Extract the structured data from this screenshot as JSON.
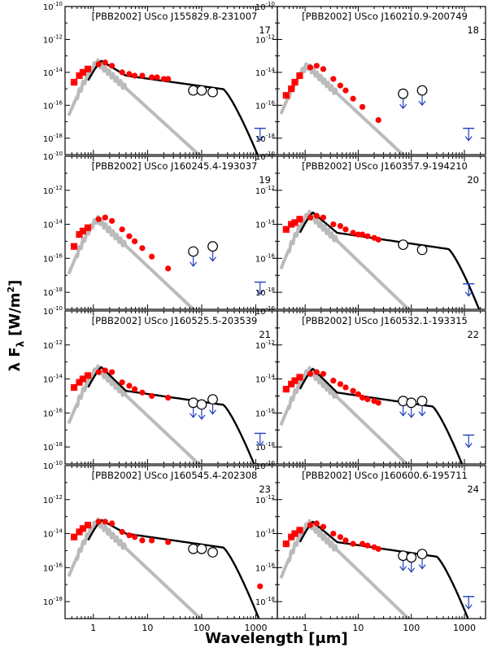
{
  "figure": {
    "ylabel_prefix": "λ F",
    "ylabel_sub": "λ",
    "ylabel_unit_open": "[W/m",
    "ylabel_unit_sup": "2",
    "ylabel_unit_close": "]",
    "xlabel_prefix": "Wavelength [",
    "xlabel_mu": "μ",
    "xlabel_suffix": "m]"
  },
  "colors": {
    "data": "#ff0000",
    "model": "#000000",
    "photosphere": "#bbbbbb",
    "upper_limit": "#1f3fbf"
  },
  "axes": {
    "x_ticks": [
      {
        "value": 1,
        "label": "1"
      },
      {
        "value": 10,
        "label": "10"
      },
      {
        "value": 100,
        "label": "100"
      },
      {
        "value": 1000,
        "label": "1000"
      }
    ],
    "y_ticks": [
      {
        "value": -10,
        "base": "10",
        "exp": "-10"
      },
      {
        "value": -12,
        "base": "10",
        "exp": "-12"
      },
      {
        "value": -14,
        "base": "10",
        "exp": "-14"
      },
      {
        "value": -16,
        "base": "10",
        "exp": "-16"
      },
      {
        "value": -18,
        "base": "10",
        "exp": "-18"
      }
    ]
  },
  "chart_data": [
    {
      "type": "scatter",
      "title": "[PBB2002] USco J155829.8-231007",
      "number": "17",
      "xlim": [
        0.3,
        2500
      ],
      "ylim": [
        -19,
        -10
      ],
      "photosphere": {
        "peak_um": 1.2,
        "peak_log": -13.4
      },
      "model": {
        "peak_um": 1.4,
        "peak_log": -13.3,
        "pl_ref_um": 50,
        "pl_ref_log": -14.7,
        "cut_um": 250
      },
      "data": {
        "x": [
          0.44,
          0.55,
          0.64,
          0.79,
          1.25,
          1.65,
          2.2,
          3.4,
          4.6,
          5.8,
          8,
          12,
          15,
          20,
          24
        ],
        "y": [
          -14.6,
          -14.2,
          -14.0,
          -13.8,
          -13.5,
          -13.4,
          -13.6,
          -14.0,
          -14.1,
          -14.2,
          -14.2,
          -14.3,
          -14.3,
          -14.4,
          -14.4
        ]
      },
      "open_circles": {
        "x": [
          70,
          100,
          160
        ],
        "y": [
          -15.1,
          -15.1,
          -15.2
        ]
      },
      "upper_limits": [
        {
          "x": 1200,
          "y": -17.4
        }
      ]
    },
    {
      "type": "scatter",
      "title": "[PBB2002] USco J160210.9-200749",
      "number": "18",
      "xlim": [
        0.3,
        2500
      ],
      "ylim": [
        -19,
        -10
      ],
      "photosphere": {
        "peak_um": 1.1,
        "peak_log": -13.6
      },
      "model": null,
      "data": {
        "x": [
          0.44,
          0.55,
          0.64,
          0.79,
          1.25,
          1.65,
          2.2,
          3.4,
          4.6,
          5.8,
          8,
          12,
          24
        ],
        "y": [
          -15.4,
          -15.0,
          -14.6,
          -14.2,
          -13.7,
          -13.6,
          -13.8,
          -14.4,
          -14.8,
          -15.1,
          -15.6,
          -16.1,
          -16.9
        ]
      },
      "open_circles": {
        "x": [
          70,
          160
        ],
        "y": [
          -15.3,
          -15.1
        ]
      },
      "upper_limits": [
        {
          "x": 70,
          "y": -15.3
        },
        {
          "x": 160,
          "y": -15.1
        },
        {
          "x": 1200,
          "y": -17.4
        }
      ]
    },
    {
      "type": "scatter",
      "title": "[PBB2002] USco J160245.4-193037",
      "number": "19",
      "xlim": [
        0.3,
        2500
      ],
      "ylim": [
        -19,
        -10
      ],
      "photosphere": {
        "peak_um": 1.2,
        "peak_log": -13.7
      },
      "model": null,
      "data": {
        "x": [
          0.44,
          0.55,
          0.64,
          0.79,
          1.25,
          1.65,
          2.2,
          3.4,
          4.6,
          5.8,
          8,
          12,
          24
        ],
        "y": [
          -15.3,
          -14.6,
          -14.4,
          -14.2,
          -13.7,
          -13.6,
          -13.8,
          -14.3,
          -14.7,
          -15.0,
          -15.4,
          -15.9,
          -16.6
        ]
      },
      "open_circles": {
        "x": [
          70,
          160
        ],
        "y": [
          -15.6,
          -15.3
        ]
      },
      "upper_limits": [
        {
          "x": 70,
          "y": -15.6
        },
        {
          "x": 160,
          "y": -15.3
        },
        {
          "x": 1200,
          "y": -17.4
        }
      ]
    },
    {
      "type": "scatter",
      "title": "[PBB2002] USco J160357.9-194210",
      "number": "20",
      "xlim": [
        0.3,
        2500
      ],
      "ylim": [
        -19,
        -10
      ],
      "photosphere": {
        "peak_um": 1.2,
        "peak_log": -13.4
      },
      "model": {
        "peak_um": 1.4,
        "peak_log": -13.3,
        "pl_ref_um": 50,
        "pl_ref_log": -15.0,
        "cut_um": 500
      },
      "data": {
        "x": [
          0.44,
          0.55,
          0.64,
          0.79,
          1.25,
          1.65,
          2.2,
          3.4,
          4.6,
          5.8,
          8,
          10,
          12,
          15,
          20,
          24
        ],
        "y": [
          -14.3,
          -14.0,
          -13.9,
          -13.7,
          -13.6,
          -13.5,
          -13.6,
          -14.0,
          -14.1,
          -14.3,
          -14.5,
          -14.6,
          -14.6,
          -14.7,
          -14.8,
          -14.9
        ]
      },
      "open_circles": {
        "x": [
          70,
          160
        ],
        "y": [
          -15.2,
          -15.5
        ]
      },
      "upper_limits": [
        {
          "x": 1200,
          "y": -17.5
        }
      ]
    },
    {
      "type": "scatter",
      "title": "[PBB2002] USco J160525.5-203539",
      "number": "21",
      "xlim": [
        0.3,
        2500
      ],
      "ylim": [
        -19,
        -10
      ],
      "photosphere": {
        "peak_um": 1.2,
        "peak_log": -13.4
      },
      "model": {
        "peak_um": 1.4,
        "peak_log": -13.3,
        "pl_ref_um": 50,
        "pl_ref_log": -15.2,
        "cut_um": 250
      },
      "data": {
        "x": [
          0.44,
          0.55,
          0.64,
          0.79,
          1.25,
          1.65,
          2.2,
          3.4,
          4.6,
          5.8,
          8,
          12,
          24
        ],
        "y": [
          -14.5,
          -14.2,
          -14.0,
          -13.8,
          -13.6,
          -13.5,
          -13.6,
          -14.2,
          -14.4,
          -14.6,
          -14.8,
          -15.0,
          -15.1
        ]
      },
      "open_circles": {
        "x": [
          70,
          100,
          160
        ],
        "y": [
          -15.4,
          -15.5,
          -15.2
        ]
      },
      "upper_limits": [
        {
          "x": 70,
          "y": -15.4
        },
        {
          "x": 100,
          "y": -15.5
        },
        {
          "x": 160,
          "y": -15.2
        },
        {
          "x": 1200,
          "y": -17.2
        }
      ]
    },
    {
      "type": "scatter",
      "title": "[PBB2002] USco J160532.1-193315",
      "number": "22",
      "xlim": [
        0.3,
        2500
      ],
      "ylim": [
        -19,
        -10
      ],
      "photosphere": {
        "peak_um": 1.2,
        "peak_log": -13.5
      },
      "model": {
        "peak_um": 1.4,
        "peak_log": -13.4,
        "pl_ref_um": 50,
        "pl_ref_log": -15.3,
        "cut_um": 250
      },
      "data": {
        "x": [
          0.44,
          0.55,
          0.64,
          0.79,
          1.25,
          1.65,
          2.2,
          3.4,
          4.6,
          5.8,
          8,
          10,
          12,
          15,
          20,
          24
        ],
        "y": [
          -14.6,
          -14.3,
          -14.1,
          -13.9,
          -13.7,
          -13.6,
          -13.7,
          -14.1,
          -14.3,
          -14.5,
          -14.7,
          -14.9,
          -15.1,
          -15.2,
          -15.3,
          -15.4
        ]
      },
      "open_circles": {
        "x": [
          70,
          100,
          160
        ],
        "y": [
          -15.3,
          -15.4,
          -15.3
        ]
      },
      "upper_limits": [
        {
          "x": 70,
          "y": -15.3
        },
        {
          "x": 100,
          "y": -15.4
        },
        {
          "x": 160,
          "y": -15.3
        },
        {
          "x": 1200,
          "y": -17.3
        }
      ]
    },
    {
      "type": "scatter",
      "title": "[PBB2002] USco J160545.4-202308",
      "number": "23",
      "xlim": [
        0.3,
        2500
      ],
      "ylim": [
        -19,
        -10
      ],
      "photosphere": {
        "peak_um": 1.2,
        "peak_log": -13.3
      },
      "model": {
        "peak_um": 1.4,
        "peak_log": -13.2,
        "pl_ref_um": 50,
        "pl_ref_log": -14.5,
        "cut_um": 250
      },
      "data": {
        "x": [
          0.44,
          0.55,
          0.64,
          0.79,
          1.25,
          1.65,
          2.2,
          3.4,
          4.6,
          5.8,
          8,
          12,
          24,
          1200
        ],
        "y": [
          -14.2,
          -13.9,
          -13.7,
          -13.5,
          -13.3,
          -13.3,
          -13.4,
          -13.9,
          -14.1,
          -14.2,
          -14.4,
          -14.4,
          -14.5,
          -17.1
        ]
      },
      "open_circles": {
        "x": [
          70,
          100,
          160
        ],
        "y": [
          -14.9,
          -14.9,
          -15.1
        ]
      },
      "upper_limits": []
    },
    {
      "type": "scatter",
      "title": "[PBB2002] USco J160600.6-195711",
      "number": "24",
      "xlim": [
        0.3,
        2500
      ],
      "ylim": [
        -19,
        -10
      ],
      "photosphere": {
        "peak_um": 1.2,
        "peak_log": -13.4
      },
      "model": {
        "peak_um": 1.4,
        "peak_log": -13.3,
        "pl_ref_um": 50,
        "pl_ref_log": -15.0,
        "cut_um": 300
      },
      "data": {
        "x": [
          0.44,
          0.55,
          0.64,
          0.79,
          1.25,
          1.65,
          2.2,
          3.4,
          4.6,
          5.8,
          8,
          12,
          15,
          20,
          24
        ],
        "y": [
          -14.6,
          -14.2,
          -14.0,
          -13.8,
          -13.5,
          -13.4,
          -13.6,
          -14.0,
          -14.2,
          -14.4,
          -14.6,
          -14.6,
          -14.7,
          -14.8,
          -14.9
        ]
      },
      "open_circles": {
        "x": [
          70,
          100,
          160
        ],
        "y": [
          -15.3,
          -15.4,
          -15.2
        ]
      },
      "upper_limits": [
        {
          "x": 70,
          "y": -15.3
        },
        {
          "x": 100,
          "y": -15.4
        },
        {
          "x": 160,
          "y": -15.2
        },
        {
          "x": 1200,
          "y": -17.7
        }
      ]
    }
  ]
}
